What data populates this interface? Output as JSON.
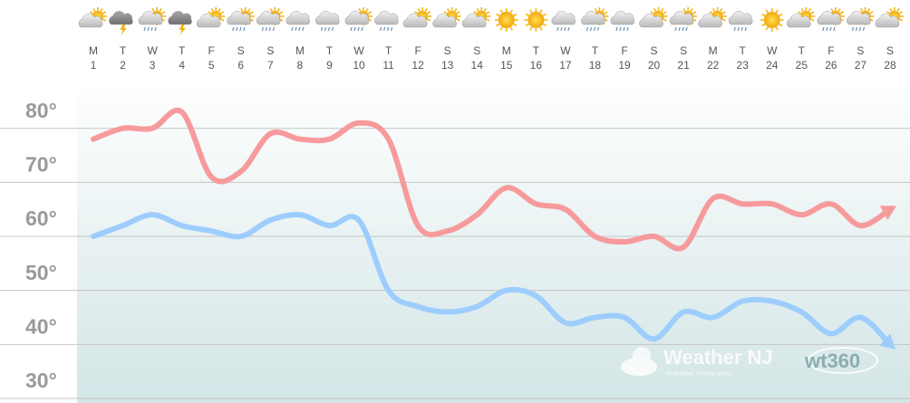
{
  "chart_data": {
    "type": "line",
    "weekdays": [
      "M",
      "T",
      "W",
      "T",
      "F",
      "S",
      "S",
      "M",
      "T",
      "W",
      "T",
      "F",
      "S",
      "S",
      "M",
      "T",
      "W",
      "T",
      "F",
      "S",
      "S",
      "M",
      "T",
      "W",
      "T",
      "F",
      "S",
      "S"
    ],
    "categories": [
      "1",
      "2",
      "3",
      "4",
      "5",
      "6",
      "7",
      "8",
      "9",
      "10",
      "11",
      "12",
      "13",
      "14",
      "15",
      "16",
      "17",
      "18",
      "19",
      "20",
      "21",
      "22",
      "23",
      "24",
      "25",
      "26",
      "27",
      "28"
    ],
    "series": [
      {
        "color": "#f79a9c",
        "values": [
          78,
          80,
          80,
          83,
          71,
          72,
          79,
          78,
          78,
          81,
          78,
          62,
          61,
          64,
          69,
          66,
          65,
          60,
          59,
          60,
          58,
          67,
          66,
          66,
          64,
          66,
          62,
          65
        ]
      },
      {
        "color": "#9dcdfd",
        "values": [
          60,
          62,
          64,
          62,
          61,
          60,
          63,
          64,
          62,
          63,
          50,
          47,
          46,
          47,
          50,
          49,
          44,
          45,
          45,
          41,
          46,
          45,
          48,
          48,
          46,
          42,
          45,
          40
        ]
      }
    ],
    "ylim": [
      30,
      89
    ],
    "yticks": [
      {
        "value": 30,
        "label": "30°"
      },
      {
        "value": 40,
        "label": "40°"
      },
      {
        "value": 50,
        "label": "50°"
      },
      {
        "value": 60,
        "label": "60°"
      },
      {
        "value": 70,
        "label": "70°"
      },
      {
        "value": 80,
        "label": "80°"
      }
    ],
    "grid": true,
    "watermark": {
      "title": "Weather NJ",
      "subtitle": "All Weather, All New Jersey",
      "logo": "wt360"
    }
  }
}
